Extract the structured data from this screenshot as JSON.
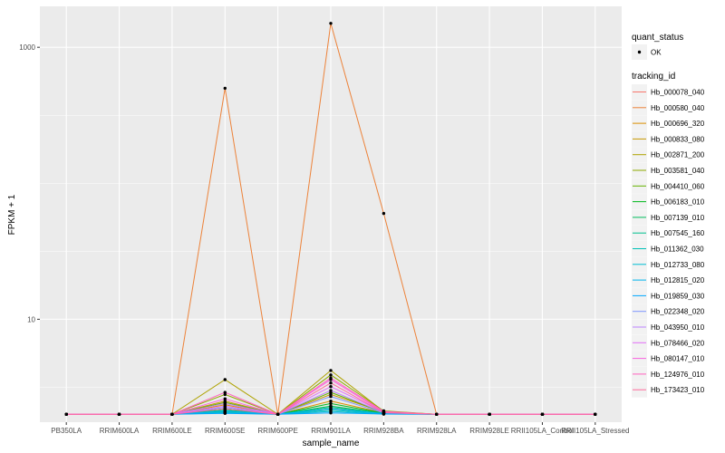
{
  "chart_data": {
    "type": "line",
    "xlabel": "sample_name",
    "ylabel": "FPKM + 1",
    "yscale": "log10",
    "ylim": [
      1.75,
      2000
    ],
    "y_ticks": [
      10,
      1000
    ],
    "y_tick_labels": [
      "10",
      "1000"
    ],
    "categories": [
      "PB350LA",
      "RRIM600LA",
      "RRIM600LE",
      "RRIM600SE",
      "RRIM600PE",
      "RRIM901LA",
      "RRIM928BA",
      "RRIM928LA",
      "RRIM928LE",
      "RRII105LA_Control",
      "RRII105LA_Stressed"
    ],
    "grid": true,
    "legend_position": "right",
    "quant_status_legend": {
      "title": "quant_status",
      "entries": [
        "OK"
      ]
    },
    "tracking_legend_title": "tracking_id",
    "series": [
      {
        "name": "Hb_000078_040",
        "color": "#F8766D",
        "values": [
          2,
          2,
          2,
          2.06,
          2,
          2.2,
          2.04,
          2,
          2,
          2,
          2
        ]
      },
      {
        "name": "Hb_000580_040",
        "color": "#EC8239",
        "values": [
          2,
          2,
          2,
          500,
          2,
          1500,
          60,
          2,
          2,
          2,
          2
        ]
      },
      {
        "name": "Hb_000696_320",
        "color": "#DB8E00",
        "values": [
          2,
          2,
          2,
          2.35,
          2,
          2.5,
          2.05,
          2,
          2,
          2,
          2
        ]
      },
      {
        "name": "Hb_000833_080",
        "color": "#C79800",
        "values": [
          2,
          2,
          2,
          2.5,
          2,
          2.8,
          2.08,
          2,
          2,
          2,
          2
        ]
      },
      {
        "name": "Hb_002871_200",
        "color": "#AEA200",
        "values": [
          2,
          2,
          2,
          3.6,
          2,
          4.2,
          2.1,
          2,
          2,
          2,
          2
        ]
      },
      {
        "name": "Hb_003581_040",
        "color": "#8FAA00",
        "values": [
          2,
          2,
          2,
          2.8,
          2,
          3.9,
          2.12,
          2,
          2,
          2,
          2
        ]
      },
      {
        "name": "Hb_004410_060",
        "color": "#64B200",
        "values": [
          2,
          2,
          2,
          2.45,
          2,
          2.9,
          2.06,
          2,
          2,
          2,
          2
        ]
      },
      {
        "name": "Hb_006183_010",
        "color": "#00B81B",
        "values": [
          2,
          2,
          2,
          2.2,
          2,
          2.4,
          2.04,
          2,
          2,
          2,
          2
        ]
      },
      {
        "name": "Hb_007139_010",
        "color": "#00BD5C",
        "values": [
          2,
          2,
          2,
          2.15,
          2,
          2.3,
          2.03,
          2,
          2,
          2,
          2
        ]
      },
      {
        "name": "Hb_007545_160",
        "color": "#00C08E",
        "values": [
          2,
          2,
          2,
          2.1,
          2,
          2.25,
          2.02,
          2,
          2,
          2,
          2
        ]
      },
      {
        "name": "Hb_011362_030",
        "color": "#00C1B7",
        "values": [
          2,
          2,
          2,
          2.05,
          2,
          2.15,
          2.02,
          2,
          2,
          2,
          2
        ]
      },
      {
        "name": "Hb_012733_080",
        "color": "#00BDD4",
        "values": [
          2,
          2,
          2,
          2.08,
          2,
          2.1,
          2.01,
          2,
          2,
          2,
          2
        ]
      },
      {
        "name": "Hb_012815_020",
        "color": "#00B5EE",
        "values": [
          2,
          2,
          2,
          2.12,
          2,
          2.2,
          2.02,
          2,
          2,
          2,
          2
        ]
      },
      {
        "name": "Hb_019859_030",
        "color": "#00A7FF",
        "values": [
          2,
          2,
          2,
          2.03,
          2,
          2.05,
          2.01,
          2,
          2,
          2,
          2
        ]
      },
      {
        "name": "Hb_022348_020",
        "color": "#7F96FF",
        "values": [
          2,
          2,
          2,
          2.25,
          2,
          2.7,
          2.05,
          2,
          2,
          2,
          2
        ]
      },
      {
        "name": "Hb_043950_010",
        "color": "#BC81FF",
        "values": [
          2,
          2,
          2,
          2.4,
          2,
          3.0,
          2.06,
          2,
          2,
          2,
          2
        ]
      },
      {
        "name": "Hb_078466_020",
        "color": "#E26EF7",
        "values": [
          2,
          2,
          2,
          2.3,
          2,
          3.2,
          2.07,
          2,
          2,
          2,
          2
        ]
      },
      {
        "name": "Hb_080147_010",
        "color": "#F863DF",
        "values": [
          2,
          2,
          2,
          2.6,
          2,
          3.6,
          2.08,
          2,
          2,
          2,
          2
        ]
      },
      {
        "name": "Hb_124976_010",
        "color": "#FF62BF",
        "values": [
          2,
          2,
          2,
          2.9,
          2,
          3.7,
          2.1,
          2,
          2,
          2,
          2
        ]
      },
      {
        "name": "Hb_173423_010",
        "color": "#FF6A9A",
        "values": [
          2,
          2,
          2,
          2.2,
          2,
          3.4,
          2.06,
          2,
          2,
          2,
          2
        ]
      }
    ]
  }
}
